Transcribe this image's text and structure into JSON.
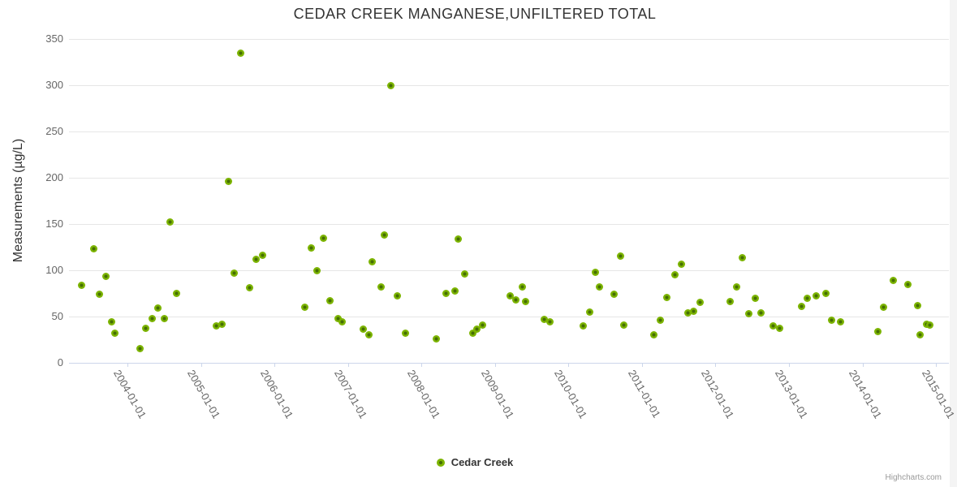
{
  "title": "CEDAR CREEK MANGANESE,UNFILTERED TOTAL",
  "legend": {
    "series_label": "Cedar Creek"
  },
  "credits_label": "Highcharts.com",
  "colors": {
    "background": "#ffffff",
    "grid": "#e6e6e6",
    "axis_line": "#ccd6eb",
    "tick": "#ccd6eb",
    "axis_label": "#666666",
    "title": "#333333",
    "marker_outer": "#7cb400",
    "marker_core": "#456e04",
    "credits": "#999999"
  },
  "chart_data": {
    "type": "scatter",
    "title": "CEDAR CREEK MANGANESE,UNFILTERED TOTAL",
    "xlabel": "",
    "ylabel": "Measurements (µg/L)",
    "ylim": [
      0,
      350
    ],
    "yticks": [
      0,
      50,
      100,
      150,
      200,
      250,
      300,
      350
    ],
    "xticks": [
      "2004-01-01",
      "2005-01-01",
      "2006-01-01",
      "2007-01-01",
      "2008-01-01",
      "2009-01-01",
      "2010-01-01",
      "2011-01-01",
      "2012-01-01",
      "2013-01-01",
      "2014-01-01",
      "2015-01-01"
    ],
    "x_range_years": [
      2003.205,
      2015.176
    ],
    "grid": "horizontal-only",
    "legend_position": "bottom-center",
    "series": [
      {
        "name": "Cedar Creek",
        "points": [
          [
            "2003-05-15",
            84
          ],
          [
            "2003-07-15",
            123
          ],
          [
            "2003-08-15",
            74
          ],
          [
            "2003-09-15",
            93
          ],
          [
            "2003-10-15",
            44
          ],
          [
            "2003-11-01",
            32
          ],
          [
            "2004-03-01",
            15
          ],
          [
            "2004-04-01",
            37
          ],
          [
            "2004-05-01",
            48
          ],
          [
            "2004-06-01",
            59
          ],
          [
            "2004-07-01",
            48
          ],
          [
            "2004-08-01",
            152
          ],
          [
            "2004-09-01",
            75
          ],
          [
            "2005-03-15",
            40
          ],
          [
            "2005-04-15",
            42
          ],
          [
            "2005-05-15",
            196
          ],
          [
            "2005-06-15",
            97
          ],
          [
            "2005-07-15",
            335
          ],
          [
            "2005-09-01",
            81
          ],
          [
            "2005-10-01",
            112
          ],
          [
            "2005-11-01",
            116
          ],
          [
            "2006-06-01",
            60
          ],
          [
            "2006-07-01",
            124
          ],
          [
            "2006-08-01",
            100
          ],
          [
            "2006-09-01",
            135
          ],
          [
            "2006-10-01",
            67
          ],
          [
            "2006-11-15",
            48
          ],
          [
            "2006-12-01",
            44
          ],
          [
            "2007-03-15",
            36
          ],
          [
            "2007-04-15",
            30
          ],
          [
            "2007-05-01",
            109
          ],
          [
            "2007-06-15",
            82
          ],
          [
            "2007-07-01",
            138
          ],
          [
            "2007-08-01",
            300
          ],
          [
            "2007-09-01",
            72
          ],
          [
            "2007-10-15",
            32
          ],
          [
            "2008-03-15",
            26
          ],
          [
            "2008-05-01",
            75
          ],
          [
            "2008-06-15",
            78
          ],
          [
            "2008-07-01",
            134
          ],
          [
            "2008-08-01",
            96
          ],
          [
            "2008-09-15",
            32
          ],
          [
            "2008-10-01",
            36
          ],
          [
            "2008-11-01",
            41
          ],
          [
            "2009-03-15",
            72
          ],
          [
            "2009-04-15",
            68
          ],
          [
            "2009-05-15",
            82
          ],
          [
            "2009-06-01",
            66
          ],
          [
            "2009-09-01",
            47
          ],
          [
            "2009-10-01",
            44
          ],
          [
            "2010-03-15",
            40
          ],
          [
            "2010-04-15",
            55
          ],
          [
            "2010-05-15",
            98
          ],
          [
            "2010-06-01",
            82
          ],
          [
            "2010-08-15",
            74
          ],
          [
            "2010-09-15",
            115
          ],
          [
            "2010-10-01",
            41
          ],
          [
            "2011-03-01",
            30
          ],
          [
            "2011-04-01",
            46
          ],
          [
            "2011-05-01",
            71
          ],
          [
            "2011-06-15",
            95
          ],
          [
            "2011-07-15",
            107
          ],
          [
            "2011-08-15",
            54
          ],
          [
            "2011-09-15",
            56
          ],
          [
            "2011-10-15",
            65
          ],
          [
            "2012-03-15",
            66
          ],
          [
            "2012-04-15",
            82
          ],
          [
            "2012-05-15",
            114
          ],
          [
            "2012-06-15",
            53
          ],
          [
            "2012-07-15",
            70
          ],
          [
            "2012-08-15",
            54
          ],
          [
            "2012-10-15",
            40
          ],
          [
            "2012-11-15",
            37
          ],
          [
            "2013-03-01",
            61
          ],
          [
            "2013-04-01",
            70
          ],
          [
            "2013-05-15",
            72
          ],
          [
            "2013-07-01",
            75
          ],
          [
            "2013-08-01",
            46
          ],
          [
            "2013-09-15",
            44
          ],
          [
            "2014-03-15",
            34
          ],
          [
            "2014-04-15",
            60
          ],
          [
            "2014-06-01",
            89
          ],
          [
            "2014-08-15",
            85
          ],
          [
            "2014-10-01",
            62
          ],
          [
            "2014-10-15",
            30
          ],
          [
            "2014-11-15",
            42
          ],
          [
            "2014-12-01",
            41
          ]
        ]
      }
    ]
  }
}
